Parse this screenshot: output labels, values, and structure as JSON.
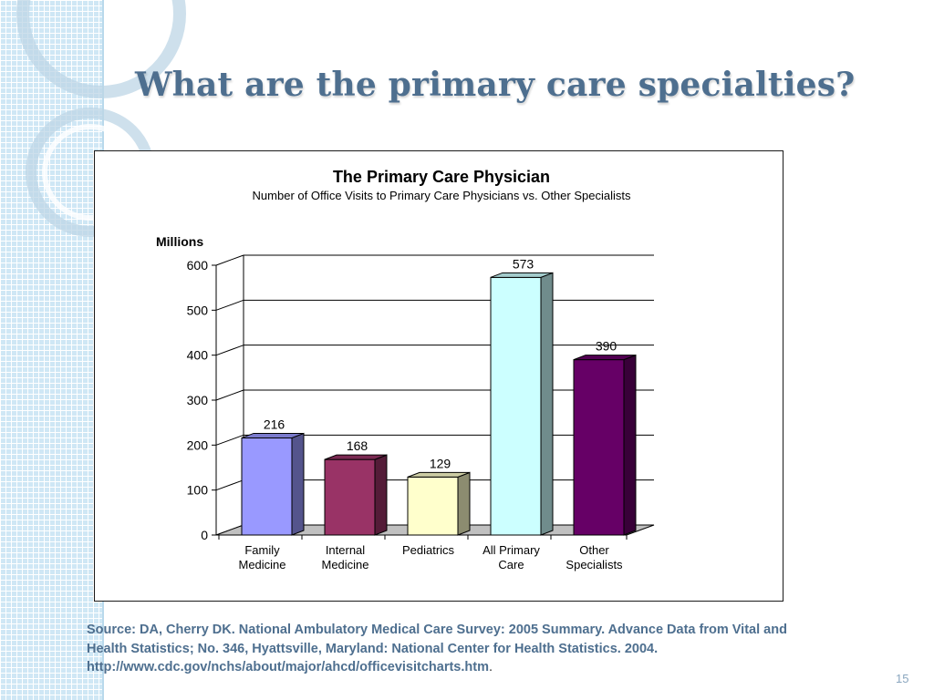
{
  "slide": {
    "title": "What are the primary care specialties?",
    "source_text": "Source: DA, Cherry DK. National Ambulatory Medical Care Survey: 2005 Summary. Advance Data from Vital and Health Statistics; No. 346,  Hyattsville, Maryland: National Center for Health Statistics. 2004. http://www.cdc.gov/nchs/about/major/ahcd/officevisitcharts.htm",
    "source_end": ".",
    "page_number": "15"
  },
  "chart_data": {
    "type": "bar",
    "title": "The Primary Care Physician",
    "subtitle": "Number of Office Visits to Primary Care Physicians vs. Other Specialists",
    "ylabel": "Millions",
    "xlabel": "",
    "ylim": [
      0,
      600
    ],
    "yticks": [
      0,
      100,
      200,
      300,
      400,
      500,
      600
    ],
    "grid": true,
    "three_d": true,
    "categories": [
      [
        "Family",
        "Medicine"
      ],
      [
        "Internal",
        "Medicine"
      ],
      [
        "Pediatrics"
      ],
      [
        "All Primary",
        "Care"
      ],
      [
        "Other",
        "Specialists"
      ]
    ],
    "values": [
      216,
      168,
      129,
      573,
      390
    ],
    "data_labels": [
      "216",
      "168",
      "129",
      "573",
      "390"
    ],
    "colors": [
      "#9999ff",
      "#993366",
      "#ffffcc",
      "#ccffff",
      "#660066"
    ]
  }
}
